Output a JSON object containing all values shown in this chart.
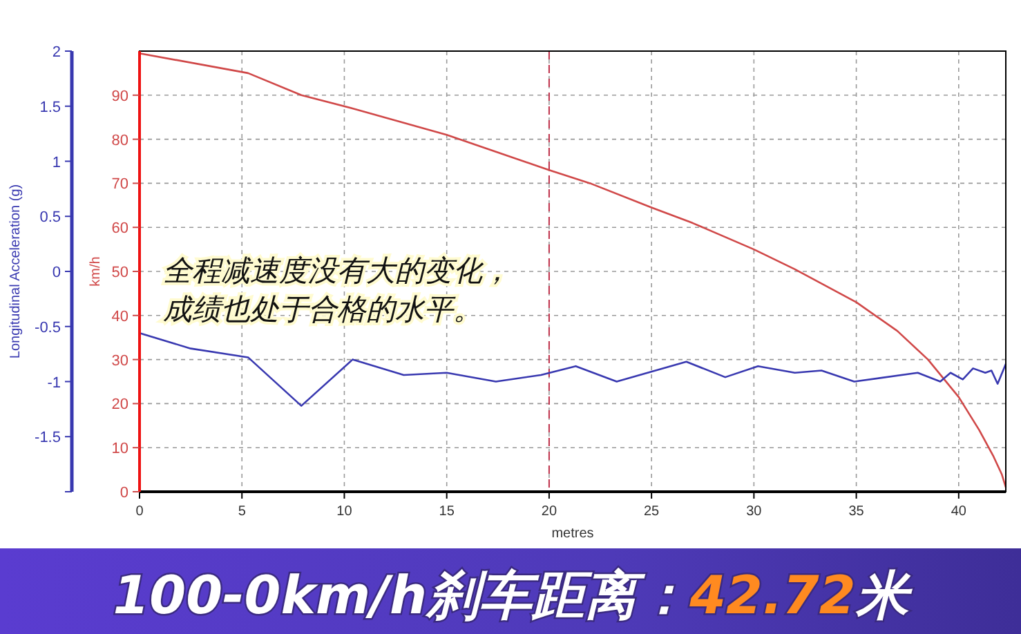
{
  "chart_data": {
    "type": "line",
    "title": "100-0km/h刹车距离：42.72米",
    "xlabel": "metres",
    "ylabel": "km/h",
    "y2label": "Longitudinal Acceleration (g)",
    "annotations": [
      "全程减速度没有大的变化，",
      "成绩也处于合格的水平。"
    ],
    "xlim": [
      0,
      42.3
    ],
    "xticks": [
      0,
      5,
      10,
      15,
      20,
      25,
      30,
      35,
      40
    ],
    "ylim": [
      0,
      100
    ],
    "yticks": [
      0,
      10,
      20,
      30,
      40,
      50,
      60,
      70,
      80,
      90
    ],
    "y2lim": [
      -2,
      2
    ],
    "y2ticks": [
      {
        "value": -2,
        "label": null
      },
      -1.5,
      -1,
      -0.5,
      0,
      0.5,
      1,
      1.5,
      2
    ],
    "grid": true,
    "marker": "none",
    "line_style": "solid",
    "ref_lines": [
      {
        "axis": "x",
        "value": 20,
        "label": null,
        "color": "#c0304a",
        "line_style": "dashed"
      }
    ],
    "series": [
      {
        "color": "#d04848",
        "x": [
          0,
          5.3,
          7.9,
          10.4,
          15,
          17.5,
          20,
          22,
          25,
          27,
          30,
          32,
          35,
          37,
          38.5,
          40,
          41,
          41.7,
          42.1,
          42.3
        ],
        "values": [
          99.5,
          95,
          90,
          87,
          81,
          77,
          73,
          70,
          64.5,
          61,
          55,
          50.5,
          43,
          36.5,
          30,
          21.5,
          14,
          8,
          4,
          1
        ]
      },
      {
        "color": "#3838b0",
        "axis": "y2",
        "x": [
          0,
          2.5,
          5.3,
          7.9,
          10.4,
          12.9,
          15,
          17.4,
          19.6,
          21.3,
          23.3,
          26.7,
          28.6,
          30.2,
          32,
          33.3,
          34.9,
          38,
          39.1,
          39.6,
          40.2,
          40.7,
          41.3,
          41.6,
          41.9,
          42.3
        ],
        "values": [
          -0.56,
          -0.7,
          -0.78,
          -1.22,
          -0.8,
          -0.94,
          -0.92,
          -1.0,
          -0.94,
          -0.86,
          -1.0,
          -0.82,
          -0.96,
          -0.86,
          -0.92,
          -0.9,
          -1.0,
          -0.92,
          -1.0,
          -0.92,
          -0.98,
          -0.88,
          -0.92,
          -0.9,
          -1.02,
          -0.84
        ]
      }
    ]
  }
}
